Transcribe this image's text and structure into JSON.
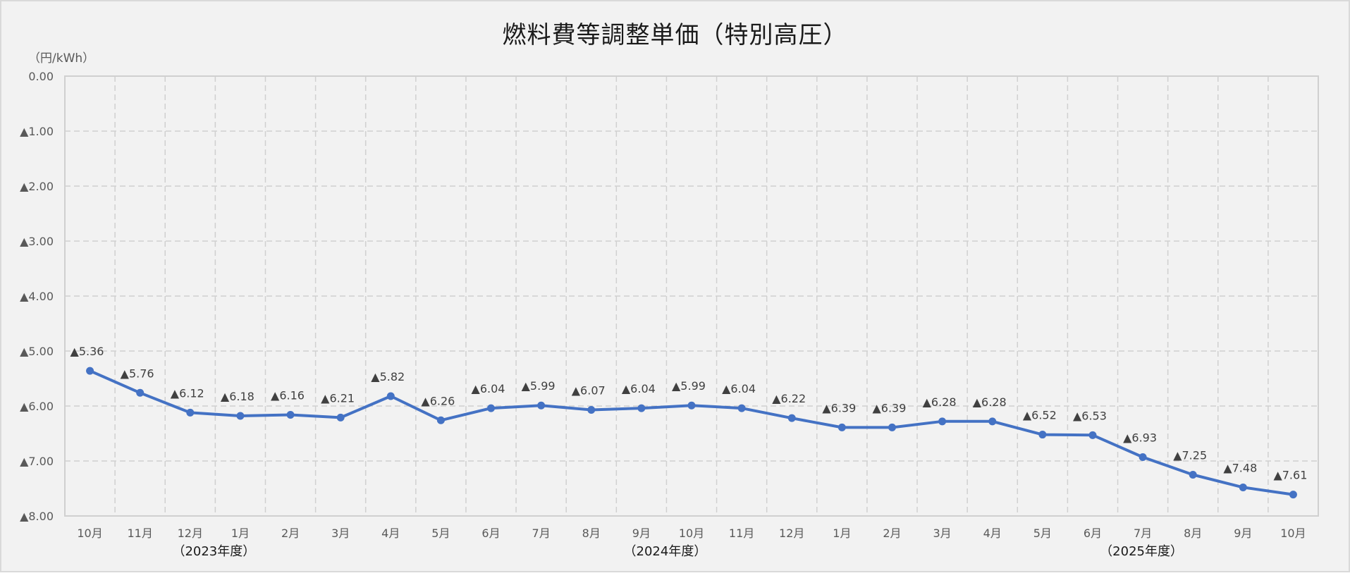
{
  "chart_data": {
    "type": "line",
    "title": "燃料費等調整単価（特別高圧）",
    "ylabel": "（円/kWh）",
    "xlabel": "",
    "ylim": [
      0,
      -8
    ],
    "y_ticks": [
      "0.00",
      "▲1.00",
      "▲2.00",
      "▲3.00",
      "▲4.00",
      "▲5.00",
      "▲6.00",
      "▲7.00",
      "▲8.00"
    ],
    "grid": true,
    "legend": "none",
    "categories": [
      "10月",
      "11月",
      "12月",
      "1月",
      "2月",
      "3月",
      "4月",
      "5月",
      "6月",
      "7月",
      "8月",
      "9月",
      "10月",
      "11月",
      "12月",
      "1月",
      "2月",
      "3月",
      "4月",
      "5月",
      "6月",
      "7月",
      "8月",
      "9月",
      "10月"
    ],
    "year_groups": [
      {
        "label": "（2023年度）",
        "center_index": 2.5
      },
      {
        "label": "（2024年度）",
        "center_index": 11.5
      },
      {
        "label": "（2025年度）",
        "center_index": 21.0
      }
    ],
    "series": [
      {
        "name": "燃料費等調整単価（特別高圧）",
        "color": "#4472c4",
        "values": [
          -5.36,
          -5.76,
          -6.12,
          -6.18,
          -6.16,
          -6.21,
          -5.82,
          -6.26,
          -6.04,
          -5.99,
          -6.07,
          -6.04,
          -5.99,
          -6.04,
          -6.22,
          -6.39,
          -6.39,
          -6.28,
          -6.28,
          -6.52,
          -6.53,
          -6.93,
          -7.25,
          -7.48,
          -7.61
        ],
        "labels": [
          "▲5.36",
          "▲5.76",
          "▲6.12",
          "▲6.18",
          "▲6.16",
          "▲6.21",
          "▲5.82",
          "▲6.26",
          "▲6.04",
          "▲5.99",
          "▲6.07",
          "▲6.04",
          "▲5.99",
          "▲6.04",
          "▲6.22",
          "▲6.39",
          "▲6.39",
          "▲6.28",
          "▲6.28",
          "▲6.52",
          "▲6.53",
          "▲6.93",
          "▲7.25",
          "▲7.48",
          "▲7.61"
        ]
      }
    ]
  },
  "colors": {
    "background": "#f2f2f2",
    "gridline": "#d0d0d0",
    "axis_text": "#595959",
    "label_text": "#404040",
    "line": "#4472c4"
  }
}
